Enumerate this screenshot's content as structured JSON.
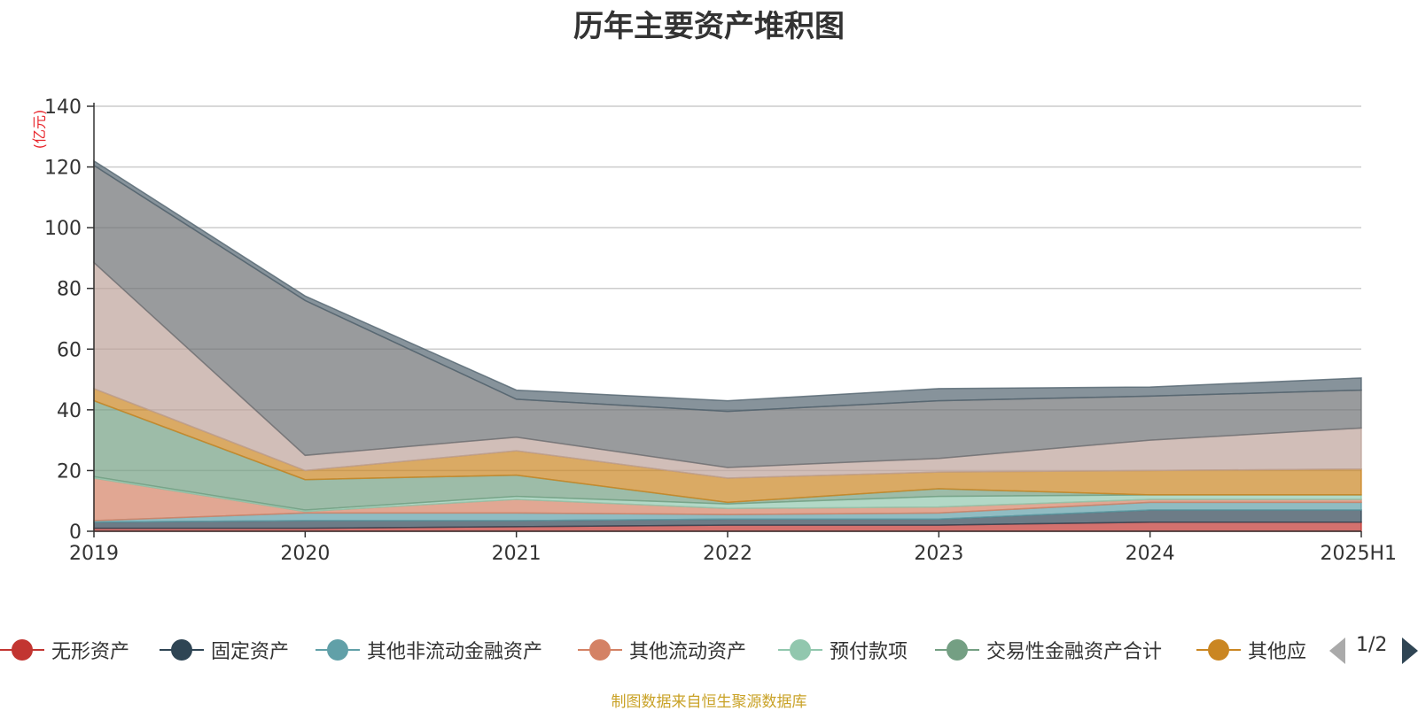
{
  "chart_data": {
    "type": "area",
    "title": "历年主要资产堆积图",
    "unit": "(亿元)",
    "x": [
      "2019",
      "2020",
      "2021",
      "2022",
      "2023",
      "2024",
      "2025H1"
    ],
    "ylim": [
      0,
      140
    ],
    "yticks": [
      0,
      20,
      40,
      60,
      80,
      100,
      120,
      140
    ],
    "grid": true,
    "stacked": true,
    "legend_position": "bottom",
    "series": [
      {
        "name": "无形资产",
        "color": "#c23531",
        "values": [
          1.0,
          1.0,
          1.5,
          2.0,
          2.0,
          3.0,
          3.0
        ]
      },
      {
        "name": "固定资产",
        "color": "#2f4554",
        "values": [
          2.0,
          2.5,
          2.0,
          2.0,
          2.0,
          4.0,
          4.0
        ]
      },
      {
        "name": "其他非流动金融资产",
        "color": "#61a0a8",
        "values": [
          0.5,
          2.5,
          2.5,
          1.5,
          2.0,
          2.5,
          2.5
        ]
      },
      {
        "name": "其他流动资产",
        "color": "#d48265",
        "values": [
          14.0,
          0.5,
          4.5,
          2.0,
          2.0,
          1.0,
          1.0
        ]
      },
      {
        "name": "预付款项",
        "color": "#91c7ae",
        "values": [
          0.5,
          0.5,
          1.0,
          1.5,
          3.5,
          1.5,
          1.5
        ]
      },
      {
        "name": "交易性金融资产合计",
        "color": "#749f83",
        "values": [
          25.0,
          10.0,
          7.0,
          0.5,
          2.5,
          0.0,
          0.0
        ]
      },
      {
        "name": "其他应",
        "color": "#ca8622",
        "values": [
          4.0,
          3.0,
          8.0,
          8.0,
          5.5,
          8.0,
          8.5
        ]
      },
      {
        "color": "#bda29a",
        "values": [
          41.5,
          5.0,
          4.5,
          3.5,
          4.5,
          10.0,
          13.5
        ]
      },
      {
        "color": "#6e7074",
        "values": [
          32.0,
          51.0,
          12.5,
          18.5,
          19.0,
          14.5,
          12.5
        ]
      },
      {
        "color": "#546570",
        "values": [
          1.5,
          1.5,
          3.0,
          3.5,
          4.0,
          3.0,
          4.0
        ]
      }
    ]
  },
  "legend": {
    "page_indicator": "1/2"
  },
  "source_note": "制图数据来自恒生聚源数据库"
}
